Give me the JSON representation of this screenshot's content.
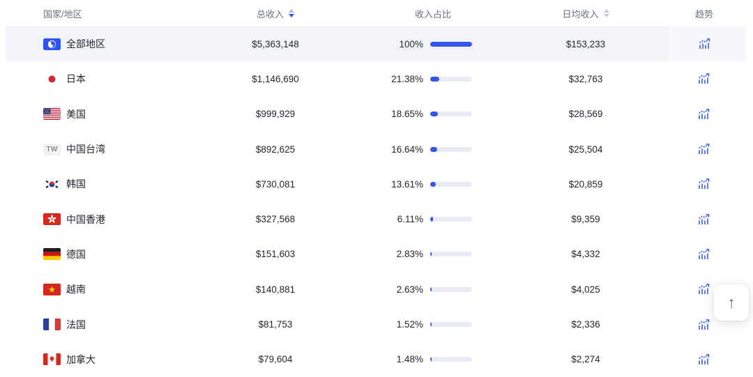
{
  "table": {
    "columns": {
      "country": "国家/地区",
      "total_revenue": "总收入",
      "revenue_share": "收入占比",
      "daily_revenue": "日均收入",
      "trend": "趋势"
    },
    "sort": {
      "total_revenue": "desc",
      "daily_revenue": "none"
    },
    "rows": [
      {
        "flag": "all",
        "name": "全部地区",
        "total": "$5,363,148",
        "share_label": "100%",
        "share_pct": 100,
        "daily": "$153,233",
        "highlighted": true
      },
      {
        "flag": "jp",
        "name": "日本",
        "total": "$1,146,690",
        "share_label": "21.38%",
        "share_pct": 21.38,
        "daily": "$32,763",
        "highlighted": false
      },
      {
        "flag": "us",
        "name": "美国",
        "total": "$999,929",
        "share_label": "18.65%",
        "share_pct": 18.65,
        "daily": "$28,569",
        "highlighted": false
      },
      {
        "flag": "tw",
        "name": "中国台湾",
        "total": "$892,625",
        "share_label": "16.64%",
        "share_pct": 16.64,
        "daily": "$25,504",
        "highlighted": false
      },
      {
        "flag": "kr",
        "name": "韩国",
        "total": "$730,081",
        "share_label": "13.61%",
        "share_pct": 13.61,
        "daily": "$20,859",
        "highlighted": false
      },
      {
        "flag": "hk",
        "name": "中国香港",
        "total": "$327,568",
        "share_label": "6.11%",
        "share_pct": 6.11,
        "daily": "$9,359",
        "highlighted": false
      },
      {
        "flag": "de",
        "name": "德国",
        "total": "$151,603",
        "share_label": "2.83%",
        "share_pct": 2.83,
        "daily": "$4,332",
        "highlighted": false
      },
      {
        "flag": "vn",
        "name": "越南",
        "total": "$140,881",
        "share_label": "2.63%",
        "share_pct": 2.63,
        "daily": "$4,025",
        "highlighted": false
      },
      {
        "flag": "fr",
        "name": "法国",
        "total": "$81,753",
        "share_label": "1.52%",
        "share_pct": 1.52,
        "daily": "$2,336",
        "highlighted": false
      },
      {
        "flag": "ca",
        "name": "加拿大",
        "total": "$79,604",
        "share_label": "1.48%",
        "share_pct": 1.48,
        "daily": "$2,274",
        "highlighted": false
      }
    ],
    "tw_badge_text": "TW"
  },
  "back_to_top": {
    "arrow_glyph": "↑"
  },
  "colors": {
    "accent_blue": "#2f54eb",
    "bar_fill": "#3456e4",
    "bar_track": "#e9ecf5",
    "highlight_row_bg": "#f2f4fa",
    "header_text": "#6a7080",
    "body_text": "#23262d"
  }
}
